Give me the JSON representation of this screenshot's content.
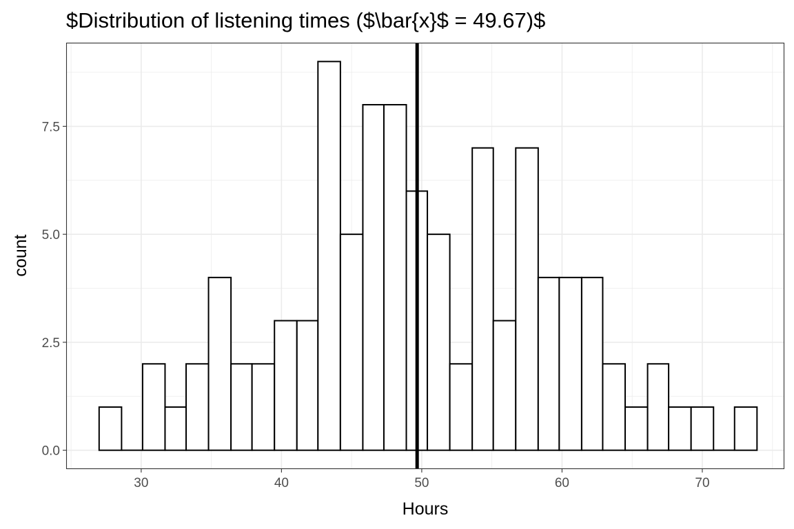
{
  "chart_data": {
    "type": "bar",
    "title": "$Distribution of listening times ($\\bar{x}$ = 49.67)$",
    "xlabel": "Hours",
    "ylabel": "count",
    "xlim": [
      24.7,
      75.8
    ],
    "ylim": [
      -0.42,
      9.42
    ],
    "x_ticks": [
      30,
      40,
      50,
      60,
      70
    ],
    "x_tick_labels": [
      "30",
      "40",
      "50",
      "60",
      "70"
    ],
    "y_ticks": [
      0,
      2.5,
      5,
      7.5
    ],
    "y_tick_labels": [
      "0.0",
      "2.5",
      "5.0",
      "7.5"
    ],
    "bins": [
      {
        "x0": 27.0,
        "x1": 28.6,
        "count": 1
      },
      {
        "x0": 28.6,
        "x1": 30.1,
        "count": 0
      },
      {
        "x0": 30.1,
        "x1": 31.7,
        "count": 2
      },
      {
        "x0": 31.7,
        "x1": 33.2,
        "count": 1
      },
      {
        "x0": 33.2,
        "x1": 34.8,
        "count": 2
      },
      {
        "x0": 34.8,
        "x1": 36.4,
        "count": 4
      },
      {
        "x0": 36.4,
        "x1": 37.9,
        "count": 2
      },
      {
        "x0": 37.9,
        "x1": 39.5,
        "count": 2
      },
      {
        "x0": 39.5,
        "x1": 41.1,
        "count": 3
      },
      {
        "x0": 41.1,
        "x1": 42.6,
        "count": 3
      },
      {
        "x0": 42.6,
        "x1": 44.2,
        "count": 9
      },
      {
        "x0": 44.2,
        "x1": 45.8,
        "count": 5
      },
      {
        "x0": 45.8,
        "x1": 47.3,
        "count": 8
      },
      {
        "x0": 47.3,
        "x1": 48.9,
        "count": 8
      },
      {
        "x0": 48.9,
        "x1": 50.4,
        "count": 6
      },
      {
        "x0": 50.4,
        "x1": 52.0,
        "count": 5
      },
      {
        "x0": 52.0,
        "x1": 53.6,
        "count": 2
      },
      {
        "x0": 53.6,
        "x1": 55.1,
        "count": 7
      },
      {
        "x0": 55.1,
        "x1": 56.7,
        "count": 3
      },
      {
        "x0": 56.7,
        "x1": 58.3,
        "count": 7
      },
      {
        "x0": 58.3,
        "x1": 59.8,
        "count": 4
      },
      {
        "x0": 59.8,
        "x1": 61.4,
        "count": 4
      },
      {
        "x0": 61.4,
        "x1": 62.9,
        "count": 4
      },
      {
        "x0": 62.9,
        "x1": 64.5,
        "count": 2
      },
      {
        "x0": 64.5,
        "x1": 66.1,
        "count": 1
      },
      {
        "x0": 66.1,
        "x1": 67.6,
        "count": 2
      },
      {
        "x0": 67.6,
        "x1": 69.2,
        "count": 1
      },
      {
        "x0": 69.2,
        "x1": 70.8,
        "count": 1
      },
      {
        "x0": 70.8,
        "x1": 72.3,
        "count": 0
      },
      {
        "x0": 72.3,
        "x1": 73.9,
        "count": 1
      }
    ],
    "mean_line": 49.67,
    "grid": true,
    "bar_fill": "#ffffff",
    "bar_stroke": "#000000",
    "grid_color": "#ebebeb"
  }
}
